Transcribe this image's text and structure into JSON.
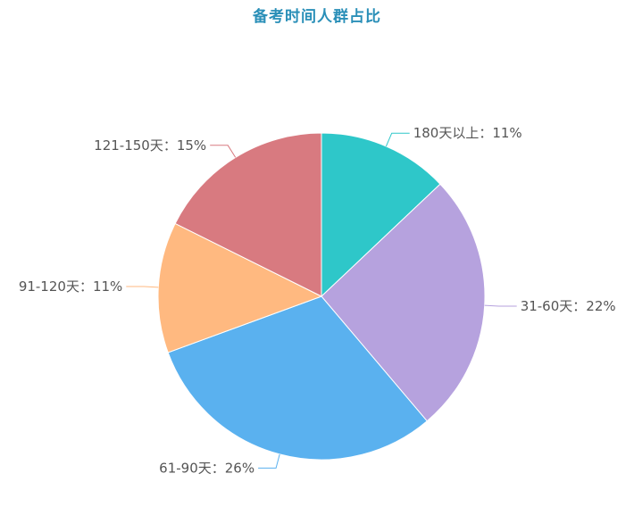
{
  "chart_data": {
    "type": "pie",
    "title": "备考时间人群占比",
    "title_color": "#2a8fb8",
    "label_separator": "：",
    "slices": [
      {
        "label": "180天以上",
        "value": 11,
        "display": "11%",
        "color": "#2ec7c9"
      },
      {
        "label": "31-60天",
        "value": 22,
        "display": "22%",
        "color": "#b6a2de"
      },
      {
        "label": "61-90天",
        "value": 26,
        "display": "26%",
        "color": "#5ab1ef"
      },
      {
        "label": "91-120天",
        "value": 11,
        "display": "11%",
        "color": "#ffb980"
      },
      {
        "label": "121-150天",
        "value": 15,
        "display": "15%",
        "color": "#d87a80"
      }
    ]
  }
}
